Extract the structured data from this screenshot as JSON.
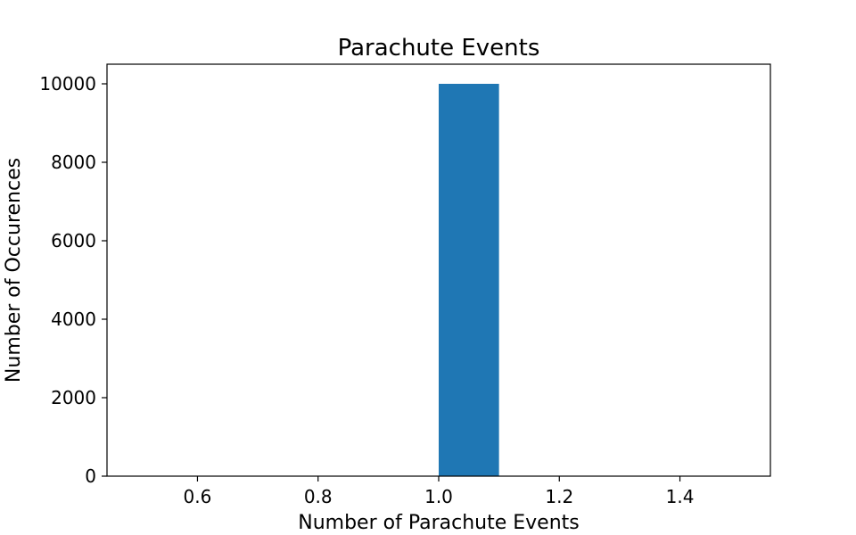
{
  "chart_data": {
    "type": "bar",
    "title": "Parachute Events",
    "xlabel": "Number of Parachute Events",
    "ylabel": "Number of Occurences",
    "xlim": [
      0.45,
      1.55
    ],
    "ylim": [
      0,
      10500
    ],
    "xticks": [
      0.6,
      0.8,
      1.0,
      1.2,
      1.4
    ],
    "xtick_labels": [
      "0.6",
      "0.8",
      "1.0",
      "1.2",
      "1.4"
    ],
    "yticks": [
      0,
      2000,
      4000,
      6000,
      8000,
      10000
    ],
    "ytick_labels": [
      "0",
      "2000",
      "4000",
      "6000",
      "8000",
      "10000"
    ],
    "bins": [
      {
        "x0": 0.5,
        "x1": 0.6,
        "value": 0
      },
      {
        "x0": 0.6,
        "x1": 0.7,
        "value": 0
      },
      {
        "x0": 0.7,
        "x1": 0.8,
        "value": 0
      },
      {
        "x0": 0.8,
        "x1": 0.9,
        "value": 0
      },
      {
        "x0": 0.9,
        "x1": 1.0,
        "value": 0
      },
      {
        "x0": 1.0,
        "x1": 1.1,
        "value": 10000
      },
      {
        "x0": 1.1,
        "x1": 1.2,
        "value": 0
      },
      {
        "x0": 1.2,
        "x1": 1.3,
        "value": 0
      },
      {
        "x0": 1.3,
        "x1": 1.4,
        "value": 0
      },
      {
        "x0": 1.4,
        "x1": 1.5,
        "value": 0
      }
    ],
    "bar_color": "#1f77b4",
    "grid": false,
    "legend": "none"
  }
}
